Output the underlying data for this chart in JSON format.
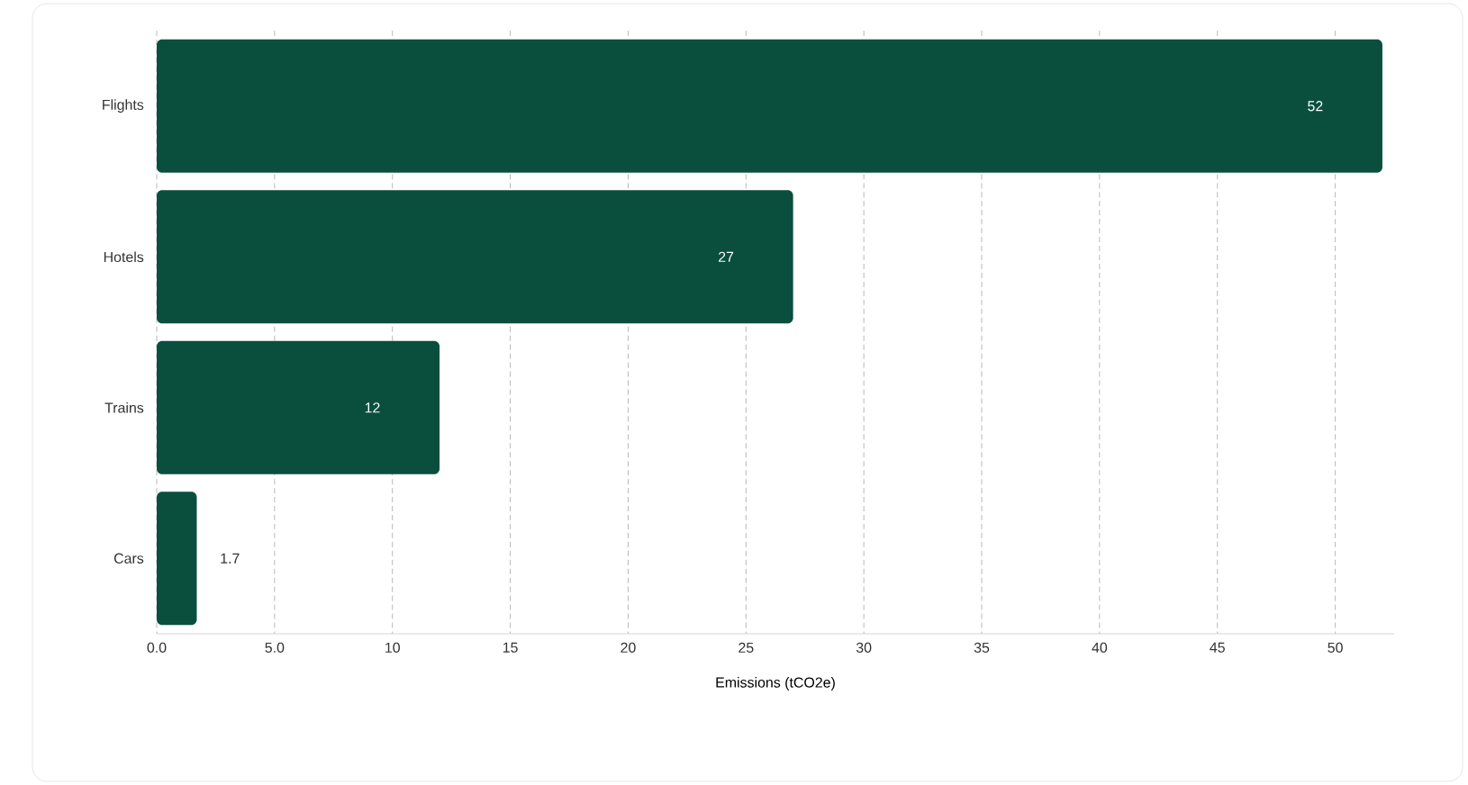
{
  "chart_data": {
    "type": "bar",
    "orientation": "horizontal",
    "xlabel": "Emissions (tCO2e)",
    "categories": [
      "Flights",
      "Hotels",
      "Trains",
      "Cars"
    ],
    "values": [
      52,
      27,
      12,
      1.7
    ],
    "color": "#0a4f3e",
    "data_labels": true,
    "xlim": [
      0,
      52.5
    ],
    "xticks": [
      {
        "value": 0,
        "label": "0.0"
      },
      {
        "value": 5,
        "label": "5.0"
      },
      10,
      15,
      20,
      25,
      30,
      35,
      40,
      45,
      50
    ],
    "grid": "x"
  }
}
